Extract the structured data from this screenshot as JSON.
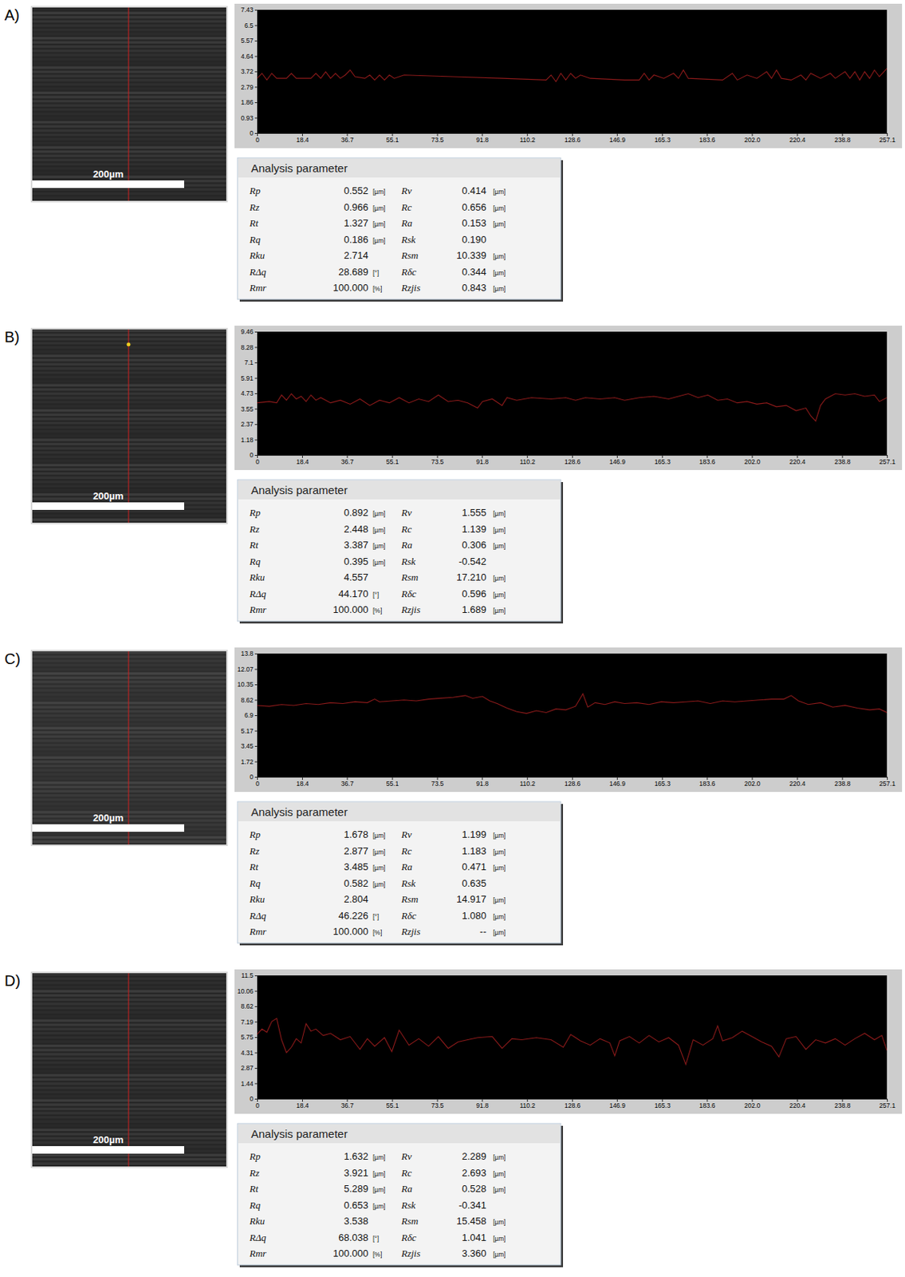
{
  "chart_data": [
    {
      "type": "line",
      "color": "#8b1a1a",
      "x": [
        0,
        2,
        4,
        6,
        8,
        12,
        14,
        16,
        22,
        24,
        26,
        28,
        30,
        32,
        34,
        36,
        38,
        40,
        44,
        46,
        48,
        50,
        52,
        54,
        56,
        60,
        80,
        100,
        118,
        120,
        122,
        124,
        126,
        128,
        130,
        132,
        136,
        150,
        156,
        158,
        160,
        162,
        166,
        170,
        172,
        174,
        176,
        190,
        194,
        196,
        200,
        204,
        208,
        210,
        212,
        214,
        218,
        222,
        224,
        226,
        230,
        234,
        236,
        240,
        242,
        244,
        246,
        248,
        250,
        252,
        254,
        257.1
      ],
      "values": [
        3.3,
        3.6,
        3.2,
        3.6,
        3.3,
        3.3,
        3.6,
        3.3,
        3.3,
        3.6,
        3.3,
        3.7,
        3.3,
        3.6,
        3.3,
        3.5,
        3.8,
        3.4,
        3.3,
        3.5,
        3.2,
        3.5,
        3.2,
        3.5,
        3.3,
        3.5,
        3.4,
        3.3,
        3.2,
        3.5,
        3.1,
        3.6,
        3.2,
        3.6,
        3.3,
        3.5,
        3.3,
        3.2,
        3.2,
        3.6,
        3.2,
        3.5,
        3.3,
        3.6,
        3.3,
        3.8,
        3.3,
        3.2,
        3.6,
        3.2,
        3.5,
        3.3,
        3.7,
        3.3,
        3.8,
        3.3,
        3.2,
        3.5,
        3.2,
        3.6,
        3.3,
        3.6,
        3.3,
        3.7,
        3.3,
        3.7,
        3.2,
        3.7,
        3.3,
        3.8,
        3.4,
        3.9
      ],
      "xlim": [
        0,
        257.1
      ],
      "xticks": [
        0,
        18.4,
        36.7,
        55.1,
        73.5,
        91.8,
        110.2,
        128.6,
        146.9,
        165.3,
        183.6,
        {
          "value": 202,
          "label": "202.0"
        },
        220.4,
        238.8,
        257.1
      ],
      "ylim": [
        0,
        7.43
      ],
      "yticks": [
        0,
        0.93,
        1.86,
        2.79,
        3.72,
        4.64,
        5.57,
        6.5,
        7.43
      ]
    },
    {
      "type": "line",
      "color": "#8b1a1a",
      "x": [
        0,
        5,
        8,
        10,
        12,
        14,
        16,
        18,
        20,
        22,
        24,
        26,
        30,
        34,
        38,
        42,
        46,
        50,
        54,
        58,
        62,
        66,
        70,
        74,
        78,
        82,
        86,
        90,
        92,
        96,
        100,
        102,
        106,
        112,
        120,
        126,
        130,
        134,
        140,
        146,
        150,
        156,
        162,
        168,
        172,
        176,
        180,
        184,
        188,
        192,
        196,
        200,
        204,
        208,
        212,
        216,
        220,
        224,
        226,
        228,
        230,
        232,
        236,
        240,
        244,
        248,
        252,
        254,
        257.1
      ],
      "values": [
        4.0,
        4.1,
        4.0,
        4.6,
        4.2,
        4.7,
        4.3,
        4.5,
        4.1,
        4.6,
        4.2,
        4.4,
        4.0,
        4.2,
        3.9,
        4.3,
        3.8,
        4.2,
        4.0,
        4.4,
        4.0,
        4.3,
        4.1,
        4.6,
        4.1,
        4.2,
        4.0,
        3.6,
        4.1,
        4.3,
        3.8,
        4.4,
        4.2,
        4.4,
        4.3,
        4.4,
        4.2,
        4.4,
        4.3,
        4.4,
        4.2,
        4.4,
        4.5,
        4.3,
        4.5,
        4.7,
        4.4,
        4.6,
        4.2,
        4.3,
        4.0,
        4.1,
        3.9,
        4.0,
        3.7,
        3.8,
        3.4,
        3.6,
        3.0,
        2.6,
        3.8,
        4.3,
        4.7,
        4.6,
        4.7,
        4.5,
        4.6,
        4.1,
        4.4
      ],
      "xlim": [
        0,
        257.1
      ],
      "xticks": [
        0,
        18.4,
        36.7,
        55.1,
        73.5,
        91.8,
        110.2,
        128.6,
        146.9,
        165.3,
        183.6,
        {
          "value": 202,
          "label": "202.0"
        },
        220.4,
        238.8,
        257.1
      ],
      "ylim": [
        0,
        9.46
      ],
      "yticks": [
        0,
        1.18,
        2.37,
        3.55,
        4.73,
        5.91,
        7.1,
        8.28,
        9.46
      ]
    },
    {
      "type": "line",
      "color": "#8b1a1a",
      "x": [
        0,
        5,
        10,
        15,
        20,
        25,
        30,
        35,
        40,
        45,
        48,
        50,
        55,
        60,
        65,
        70,
        75,
        80,
        85,
        88,
        92,
        95,
        98,
        102,
        106,
        110,
        114,
        118,
        122,
        126,
        130,
        133,
        135,
        138,
        142,
        146,
        150,
        155,
        160,
        165,
        170,
        175,
        180,
        185,
        190,
        195,
        200,
        205,
        210,
        215,
        218,
        221,
        225,
        230,
        235,
        240,
        245,
        250,
        254,
        257.1
      ],
      "values": [
        8.0,
        7.9,
        8.1,
        8.0,
        8.2,
        8.1,
        8.3,
        8.2,
        8.4,
        8.3,
        8.7,
        8.4,
        8.5,
        8.6,
        8.5,
        8.7,
        8.8,
        8.9,
        9.1,
        8.8,
        9.0,
        8.5,
        8.2,
        7.7,
        7.3,
        7.1,
        7.4,
        7.2,
        7.6,
        7.5,
        7.9,
        9.3,
        7.8,
        8.3,
        8.1,
        8.4,
        8.2,
        8.3,
        8.1,
        8.4,
        8.3,
        8.4,
        8.5,
        8.2,
        8.5,
        8.4,
        8.5,
        8.6,
        8.7,
        8.7,
        9.1,
        8.5,
        8.1,
        8.3,
        7.8,
        8.0,
        7.7,
        7.5,
        7.6,
        7.2
      ],
      "xlim": [
        0,
        257.1
      ],
      "xticks": [
        0,
        18.4,
        36.7,
        55.1,
        73.5,
        91.8,
        110.2,
        128.6,
        146.9,
        165.3,
        183.6,
        {
          "value": 202,
          "label": "202.0"
        },
        220.4,
        238.8,
        257.1
      ],
      "ylim": [
        0,
        13.8
      ],
      "yticks": [
        0,
        1.72,
        3.45,
        5.17,
        6.9,
        8.62,
        10.35,
        12.07,
        13.8
      ]
    },
    {
      "type": "line",
      "color": "#8b1a1a",
      "x": [
        0,
        2,
        4,
        6,
        8,
        10,
        12,
        14,
        16,
        18,
        20,
        22,
        24,
        27,
        30,
        34,
        38,
        42,
        45,
        48,
        52,
        55,
        58,
        62,
        66,
        70,
        74,
        78,
        82,
        86,
        90,
        96,
        100,
        104,
        108,
        114,
        120,
        125,
        128,
        132,
        136,
        140,
        144,
        146,
        148,
        152,
        156,
        160,
        164,
        168,
        172,
        175,
        178,
        182,
        186,
        188,
        190,
        194,
        198,
        202,
        206,
        210,
        213,
        216,
        220,
        224,
        228,
        232,
        236,
        240,
        244,
        248,
        252,
        255,
        257.1
      ],
      "values": [
        6.0,
        6.5,
        6.2,
        7.2,
        7.5,
        5.5,
        4.3,
        4.8,
        5.6,
        5.2,
        7.0,
        6.3,
        6.5,
        5.9,
        6.1,
        5.5,
        5.8,
        4.6,
        5.6,
        4.9,
        5.7,
        4.4,
        6.4,
        5.0,
        5.6,
        4.9,
        5.8,
        4.7,
        5.3,
        5.5,
        5.7,
        5.8,
        4.7,
        5.6,
        5.5,
        5.7,
        5.5,
        4.8,
        6.0,
        5.4,
        5.0,
        5.6,
        5.2,
        4.0,
        5.4,
        5.8,
        5.2,
        5.9,
        5.3,
        5.7,
        5.0,
        3.2,
        5.5,
        5.0,
        5.6,
        6.8,
        5.4,
        5.7,
        6.3,
        5.8,
        5.3,
        4.9,
        3.9,
        5.6,
        5.8,
        4.6,
        5.5,
        5.2,
        5.6,
        5.0,
        5.6,
        6.1,
        5.5,
        5.9,
        4.5
      ],
      "xlim": [
        0,
        257.1
      ],
      "xticks": [
        0,
        18.4,
        36.7,
        55.1,
        73.5,
        91.8,
        110.2,
        128.6,
        146.9,
        165.3,
        183.6,
        {
          "value": 202,
          "label": "202.0"
        },
        220.4,
        238.8,
        257.1
      ],
      "ylim": [
        0,
        11.5
      ],
      "yticks": [
        0,
        1.44,
        2.87,
        4.31,
        5.75,
        7.19,
        8.62,
        10.06,
        11.5
      ]
    }
  ],
  "panels": [
    {
      "label": "A)",
      "scale_bar": "200µm",
      "table": {
        "title": "Analysis parameter",
        "rows": [
          [
            "Rp",
            "0.552",
            "[µm]",
            "Rv",
            "0.414",
            "[µm]"
          ],
          [
            "Rz",
            "0.966",
            "[µm]",
            "Rc",
            "0.656",
            "[µm]"
          ],
          [
            "Rt",
            "1.327",
            "[µm]",
            "Ra",
            "0.153",
            "[µm]"
          ],
          [
            "Rq",
            "0.186",
            "[µm]",
            "Rsk",
            "0.190",
            null
          ],
          [
            "Rku",
            "2.714",
            null,
            "Rsm",
            "10.339",
            "[µm]"
          ],
          [
            "RΔq",
            "28.689",
            "[°]",
            "Rδc",
            "0.344",
            "[µm]"
          ],
          [
            "Rmr",
            "100.000",
            "[%]",
            "Rzjis",
            "0.843",
            "[µm]"
          ]
        ]
      }
    },
    {
      "label": "B)",
      "scale_bar": "200µm",
      "table": {
        "title": "Analysis parameter",
        "rows": [
          [
            "Rp",
            "0.892",
            "[µm]",
            "Rv",
            "1.555",
            "[µm]"
          ],
          [
            "Rz",
            "2.448",
            "[µm]",
            "Rc",
            "1.139",
            "[µm]"
          ],
          [
            "Rt",
            "3.387",
            "[µm]",
            "Ra",
            "0.306",
            "[µm]"
          ],
          [
            "Rq",
            "0.395",
            "[µm]",
            "Rsk",
            "-0.542",
            null
          ],
          [
            "Rku",
            "4.557",
            null,
            "Rsm",
            "17.210",
            "[µm]"
          ],
          [
            "RΔq",
            "44.170",
            "[°]",
            "Rδc",
            "0.596",
            "[µm]"
          ],
          [
            "Rmr",
            "100.000",
            "[%]",
            "Rzjis",
            "1.689",
            "[µm]"
          ]
        ]
      }
    },
    {
      "label": "C)",
      "scale_bar": "200µm",
      "table": {
        "title": "Analysis parameter",
        "rows": [
          [
            "Rp",
            "1.678",
            "[µm]",
            "Rv",
            "1.199",
            "[µm]"
          ],
          [
            "Rz",
            "2.877",
            "[µm]",
            "Rc",
            "1.183",
            "[µm]"
          ],
          [
            "Rt",
            "3.485",
            "[µm]",
            "Ra",
            "0.471",
            "[µm]"
          ],
          [
            "Rq",
            "0.582",
            "[µm]",
            "Rsk",
            "0.635",
            null
          ],
          [
            "Rku",
            "2.804",
            null,
            "Rsm",
            "14.917",
            "[µm]"
          ],
          [
            "RΔq",
            "46.226",
            "[°]",
            "Rδc",
            "1.080",
            "[µm]"
          ],
          [
            "Rmr",
            "100.000",
            "[%]",
            "Rzjis",
            "--",
            "[µm]"
          ]
        ]
      }
    },
    {
      "label": "D)",
      "scale_bar": "200µm",
      "table": {
        "title": "Analysis parameter",
        "rows": [
          [
            "Rp",
            "1.632",
            "[µm]",
            "Rv",
            "2.289",
            "[µm]"
          ],
          [
            "Rz",
            "3.921",
            "[µm]",
            "Rc",
            "2.693",
            "[µm]"
          ],
          [
            "Rt",
            "5.289",
            "[µm]",
            "Ra",
            "0.528",
            "[µm]"
          ],
          [
            "Rq",
            "0.653",
            "[µm]",
            "Rsk",
            "-0.341",
            null
          ],
          [
            "Rku",
            "3.538",
            null,
            "Rsm",
            "15.458",
            "[µm]"
          ],
          [
            "RΔq",
            "68.038",
            "[°]",
            "Rδc",
            "1.041",
            "[µm]"
          ],
          [
            "Rmr",
            "100.000",
            "[%]",
            "Rzjis",
            "3.360",
            "[µm]"
          ]
        ]
      }
    }
  ]
}
